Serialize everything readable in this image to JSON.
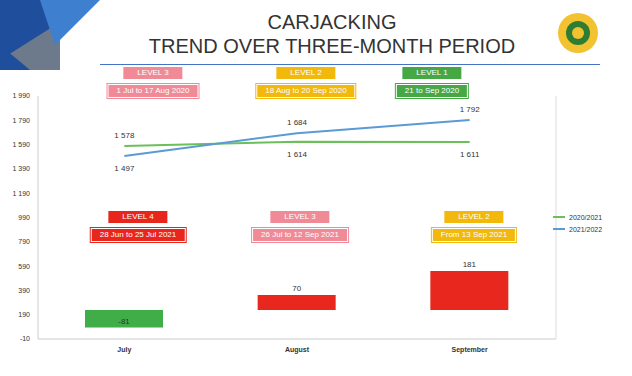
{
  "chart_data": {
    "type": "line",
    "title": "CARJACKING",
    "subtitle": "TREND OVER THREE-MONTH PERIOD",
    "categories": [
      "July",
      "August",
      "September"
    ],
    "series": [
      {
        "name": "2020/2021",
        "type": "line",
        "color": "#6cbf5a",
        "values": [
          1578,
          1614,
          1611
        ],
        "value_labels": [
          "1 578",
          "1 614",
          "1 611"
        ],
        "periods": [
          {
            "label": "LEVEL 3",
            "period": "1 Jul to 17 Aug 2020",
            "color": "#f08a96"
          },
          {
            "label": "LEVEL 2",
            "period": "18 Aug to 20 Sep 2020",
            "color": "#f2b80c"
          },
          {
            "label": "LEVEL 1",
            "period": "21 to Sep 2020",
            "color": "#45a845"
          }
        ]
      },
      {
        "name": "2021/2022",
        "type": "line",
        "color": "#5b9bd5",
        "values": [
          1497,
          1684,
          1792
        ],
        "value_labels": [
          "1 497",
          "1 684",
          "1 792"
        ],
        "periods": [
          {
            "label": "LEVEL 4",
            "period": "28 Jun to 25 Jul 2021",
            "color": "#e8261c"
          },
          {
            "label": "LEVEL 3",
            "period": "26 Jul to 12 Sep 2021",
            "color": "#f08a96"
          },
          {
            "label": "LEVEL 2",
            "period": "From 13 Sep 2021",
            "color": "#f2b80c"
          }
        ]
      },
      {
        "type": "bar",
        "axis": "y2",
        "colors": [
          "#3fae49",
          "#e8281e",
          "#e8281e"
        ],
        "values": [
          -81,
          70,
          181
        ]
      }
    ],
    "ylim": [
      -10,
      1990
    ],
    "yticks": [
      -10,
      190,
      390,
      590,
      790,
      990,
      {
        "value": 1190,
        "label": "1 190"
      },
      {
        "value": 1390,
        "label": "1 390"
      },
      {
        "value": 1590,
        "label": "1 590"
      },
      {
        "value": 1790,
        "label": "1 790"
      },
      {
        "value": 1990,
        "label": "1 990"
      }
    ],
    "y2lim": [
      -135,
      995
    ],
    "y2ticks": [],
    "grid": false,
    "legend": "right",
    "data_labels": true
  }
}
